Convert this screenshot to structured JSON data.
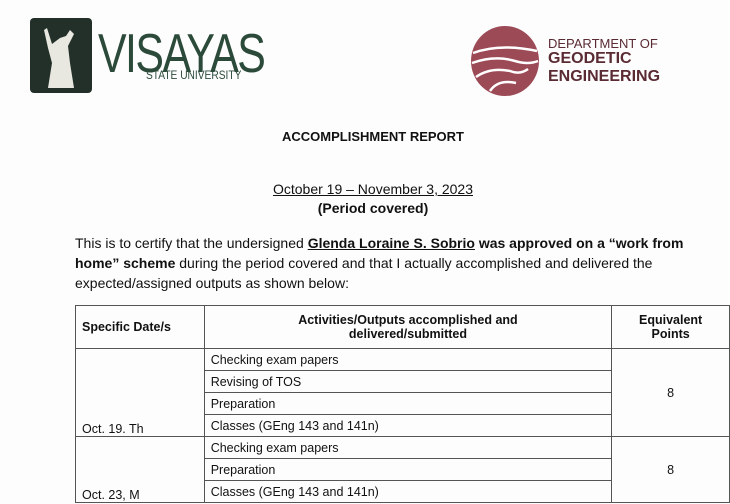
{
  "header": {
    "university": {
      "name": "VISAYAS",
      "subtitle": "STATE UNIVERSITY"
    },
    "department": {
      "line1": "DEPARTMENT OF",
      "line2": "GEODETIC",
      "line3": "ENGINEERING"
    },
    "colors": {
      "vsu_green": "#2c4a3a",
      "dept_maroon": "#9c4a56"
    }
  },
  "title": "ACCOMPLISHMENT REPORT",
  "period": {
    "value": "October 19 – November 3, 2023",
    "label": "(Period covered)"
  },
  "certification": {
    "p1": "This is to certify that the undersigned ",
    "name": "Glenda Loraine S. Sobrio",
    "p2": " was approved on a “work from home” scheme",
    "p3": " during the period covered and that I actually accomplished and delivered the expected/assigned outputs as shown below:"
  },
  "table": {
    "headers": [
      "Specific Date/s",
      "Activities/Outputs accomplished and delivered/submitted",
      "Equivalent Points"
    ],
    "rows": [
      {
        "date": "Oct. 19. Th",
        "activities": [
          "Checking exam papers",
          "Revising of TOS",
          "Preparation",
          "Classes (GEng 143 and 141n)"
        ],
        "points": "8"
      },
      {
        "date": "Oct. 23, M",
        "activities": [
          "Checking exam papers",
          "Preparation",
          "Classes (GEng 143 and 141n)"
        ],
        "points": "8"
      }
    ]
  }
}
